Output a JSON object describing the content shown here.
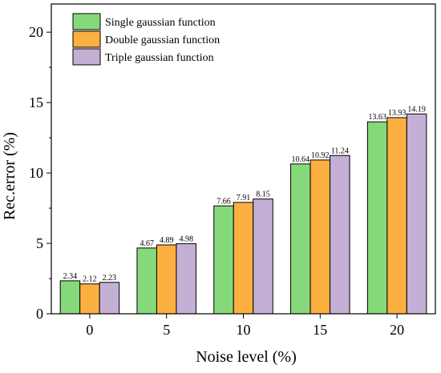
{
  "chart_data": {
    "type": "bar",
    "title": "",
    "xlabel": "Noise level (%)",
    "ylabel": "Rec.error (%)",
    "categories": [
      "0",
      "5",
      "10",
      "15",
      "20"
    ],
    "ylim": [
      0,
      22
    ],
    "yticks": [
      0,
      5,
      10,
      15,
      20
    ],
    "grid": false,
    "legend_position": "top-left",
    "series": [
      {
        "name": "Single gaussian function",
        "color": "#86d97a",
        "values": [
          2.34,
          4.67,
          7.66,
          10.64,
          13.63
        ],
        "labels": [
          "2.34",
          "4.67",
          "7.66",
          "10.64",
          "13.63"
        ]
      },
      {
        "name": "Double gaussian function",
        "color": "#fbb040",
        "values": [
          2.12,
          4.89,
          7.91,
          10.92,
          13.93
        ],
        "labels": [
          "2.12",
          "4.89",
          "7.91",
          "10.92",
          "13.93"
        ]
      },
      {
        "name": "Triple gaussian function",
        "color": "#c5b0d5",
        "values": [
          2.23,
          4.98,
          8.15,
          11.24,
          14.19
        ],
        "labels": [
          "2.23",
          "4.98",
          "8.15",
          "11.24",
          "14.19"
        ]
      }
    ]
  }
}
